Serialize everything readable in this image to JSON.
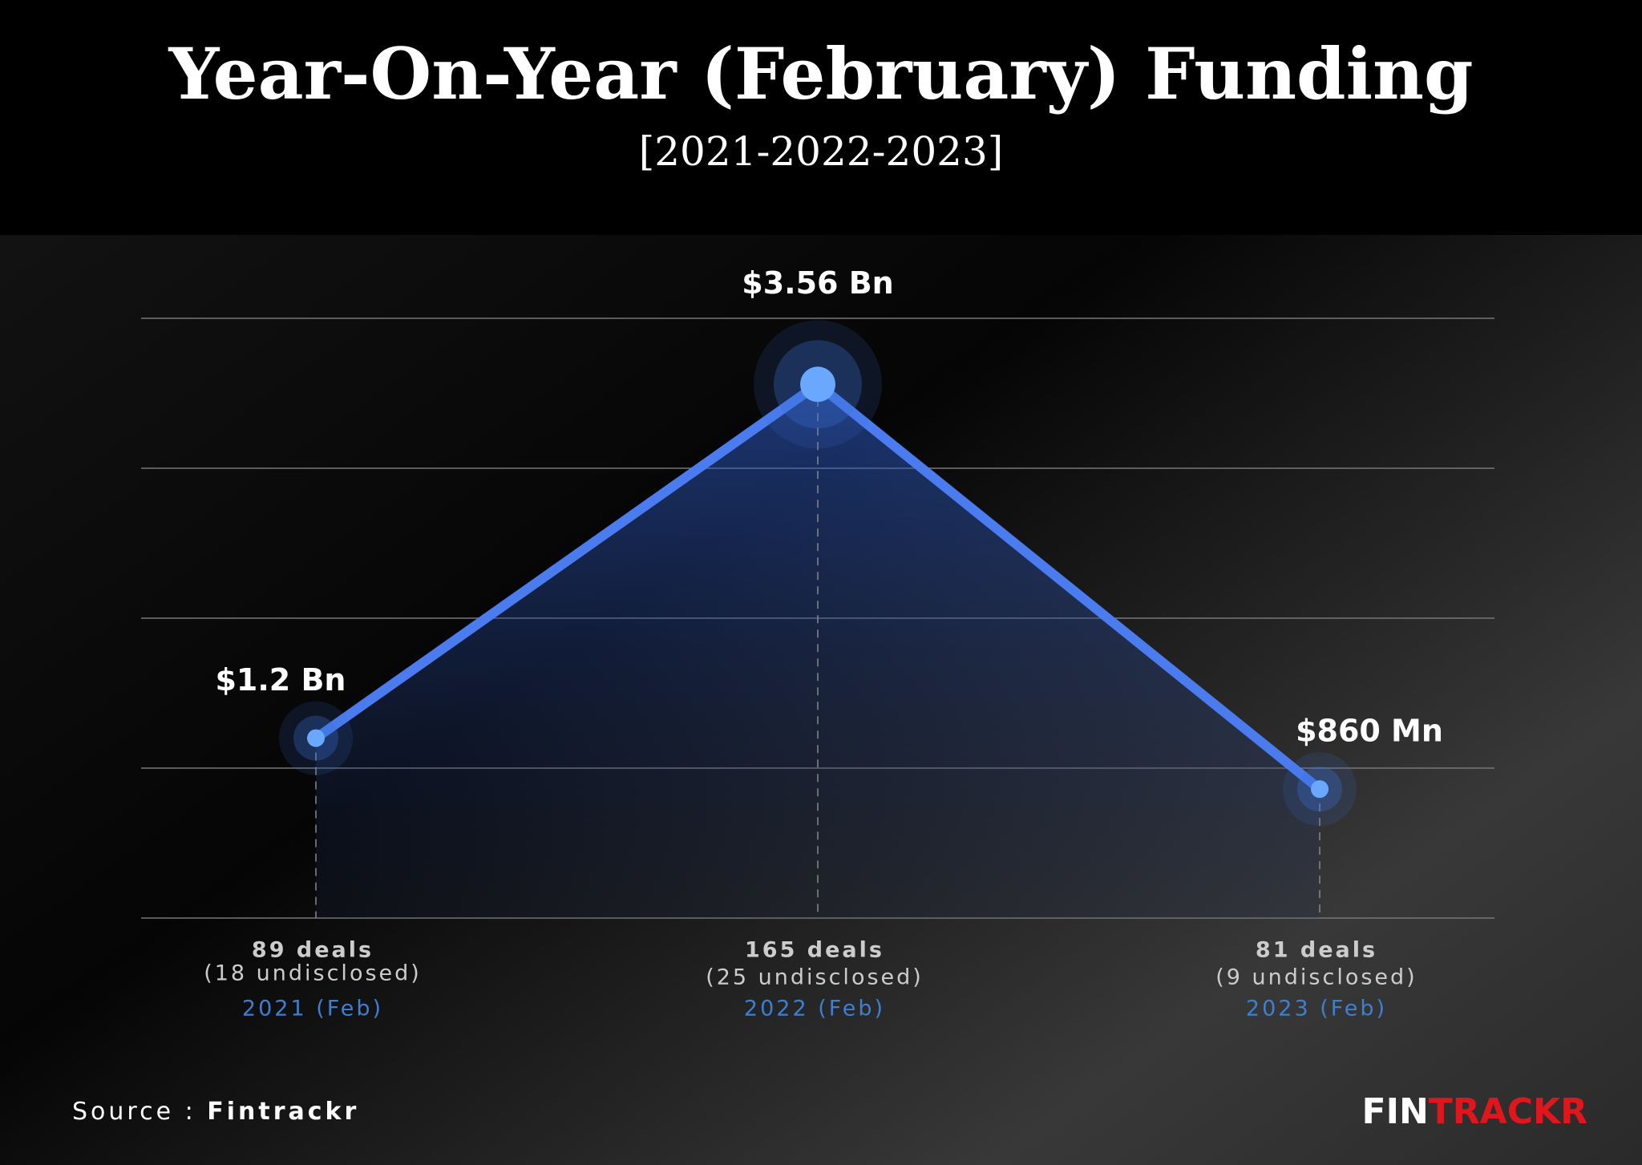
{
  "chart_data": {
    "type": "line",
    "title": "Year-On-Year (February) Funding",
    "subtitle": "[2021-2022-2023]",
    "categories": [
      "2021 (Feb)",
      "2022 (Feb)",
      "2023 (Feb)"
    ],
    "deals": [
      "89 deals",
      "165 deals",
      "81 deals"
    ],
    "undisclosed": [
      "(18 undisclosed)",
      "(25 undisclosed)",
      "(9 undisclosed)"
    ],
    "values": [
      1.2,
      3.56,
      0.86
    ],
    "value_labels": [
      "$1.2 Bn",
      "$3.56 Bn",
      "$860 Mn"
    ],
    "color": "#4a7cf0",
    "ylim": [
      0,
      4
    ],
    "yticks": [
      0,
      1,
      2,
      3,
      4
    ],
    "grid": true,
    "source_label": "Source :",
    "source": "Fintrackr",
    "brand": [
      "FIN",
      "TRACKR"
    ]
  }
}
